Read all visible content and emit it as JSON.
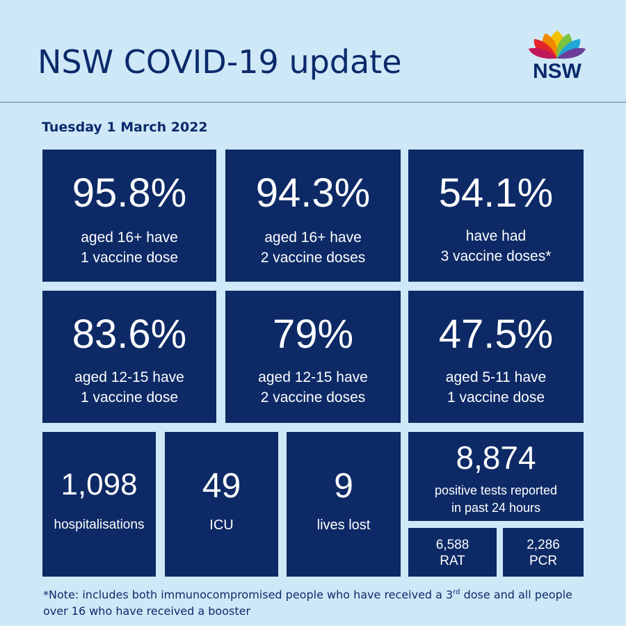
{
  "header": {
    "title": "NSW COVID-19 update",
    "logo_text": "NSW"
  },
  "date": "Tuesday 1 March 2022",
  "tiles": [
    {
      "value": "95.8%",
      "line1": "aged 16+ have",
      "line2": "1 vaccine dose"
    },
    {
      "value": "94.3%",
      "line1": "aged 16+ have",
      "line2": "2 vaccine doses"
    },
    {
      "value": "54.1%",
      "line1": "have had",
      "line2": "3 vaccine doses*"
    },
    {
      "value": "83.6%",
      "line1": "aged 12-15 have",
      "line2": "1 vaccine dose"
    },
    {
      "value": "79%",
      "line1": "aged 12-15 have",
      "line2": "2 vaccine doses"
    },
    {
      "value": "47.5%",
      "line1": "aged 5-11 have",
      "line2": "1 vaccine dose"
    }
  ],
  "hospitalisations": {
    "value": "1,098",
    "label": "hospitalisations"
  },
  "icu": {
    "value": "49",
    "label": "ICU"
  },
  "lives_lost": {
    "value": "9",
    "label": "lives lost"
  },
  "positive_tests": {
    "value": "8,874",
    "line1": "positive tests reported",
    "line2": "in past 24 hours"
  },
  "rat": {
    "value": "6,588",
    "label": "RAT"
  },
  "pcr": {
    "value": "2,286",
    "label": "PCR"
  },
  "footnote": {
    "part1": "*Note: includes both immunocompromised people who have received a 3",
    "sup": "rd",
    "part2": " dose and all people over 16 who have received a booster"
  },
  "colors": {
    "background": "#cfe8f7",
    "tile": "#0d2a66",
    "title_text": "#0b2a6b"
  }
}
